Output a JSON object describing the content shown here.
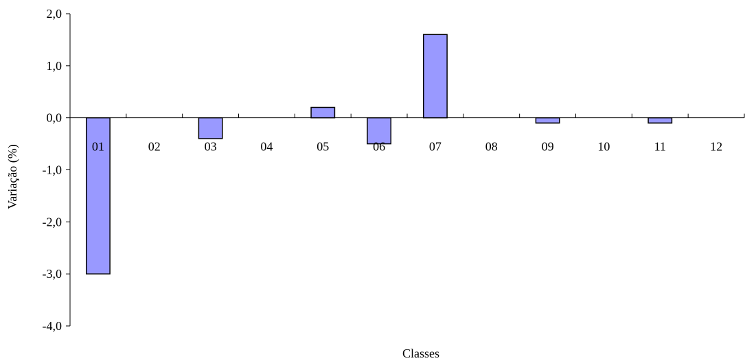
{
  "chart_data": {
    "type": "bar",
    "title": "",
    "xlabel": "Classes",
    "ylabel": "Variação (%)",
    "categories": [
      "01",
      "02",
      "03",
      "04",
      "05",
      "06",
      "07",
      "08",
      "09",
      "10",
      "11",
      "12"
    ],
    "values": [
      -3.0,
      0.0,
      -0.4,
      0.0,
      0.2,
      -0.5,
      1.6,
      0.0,
      -0.1,
      0.0,
      -0.1,
      0.0
    ],
    "ylim": [
      -4.0,
      2.0
    ],
    "yticks": [
      -4.0,
      -3.0,
      -2.0,
      -1.0,
      0.0,
      1.0,
      2.0
    ],
    "ytick_labels": [
      "-4,0",
      "-3,0",
      "-2,0",
      "-1,0",
      "0,0",
      "1,0",
      "2,0"
    ],
    "grid": false,
    "legend": "none",
    "bar_color": "#9999ff",
    "bar_edge_color": "#000000"
  }
}
